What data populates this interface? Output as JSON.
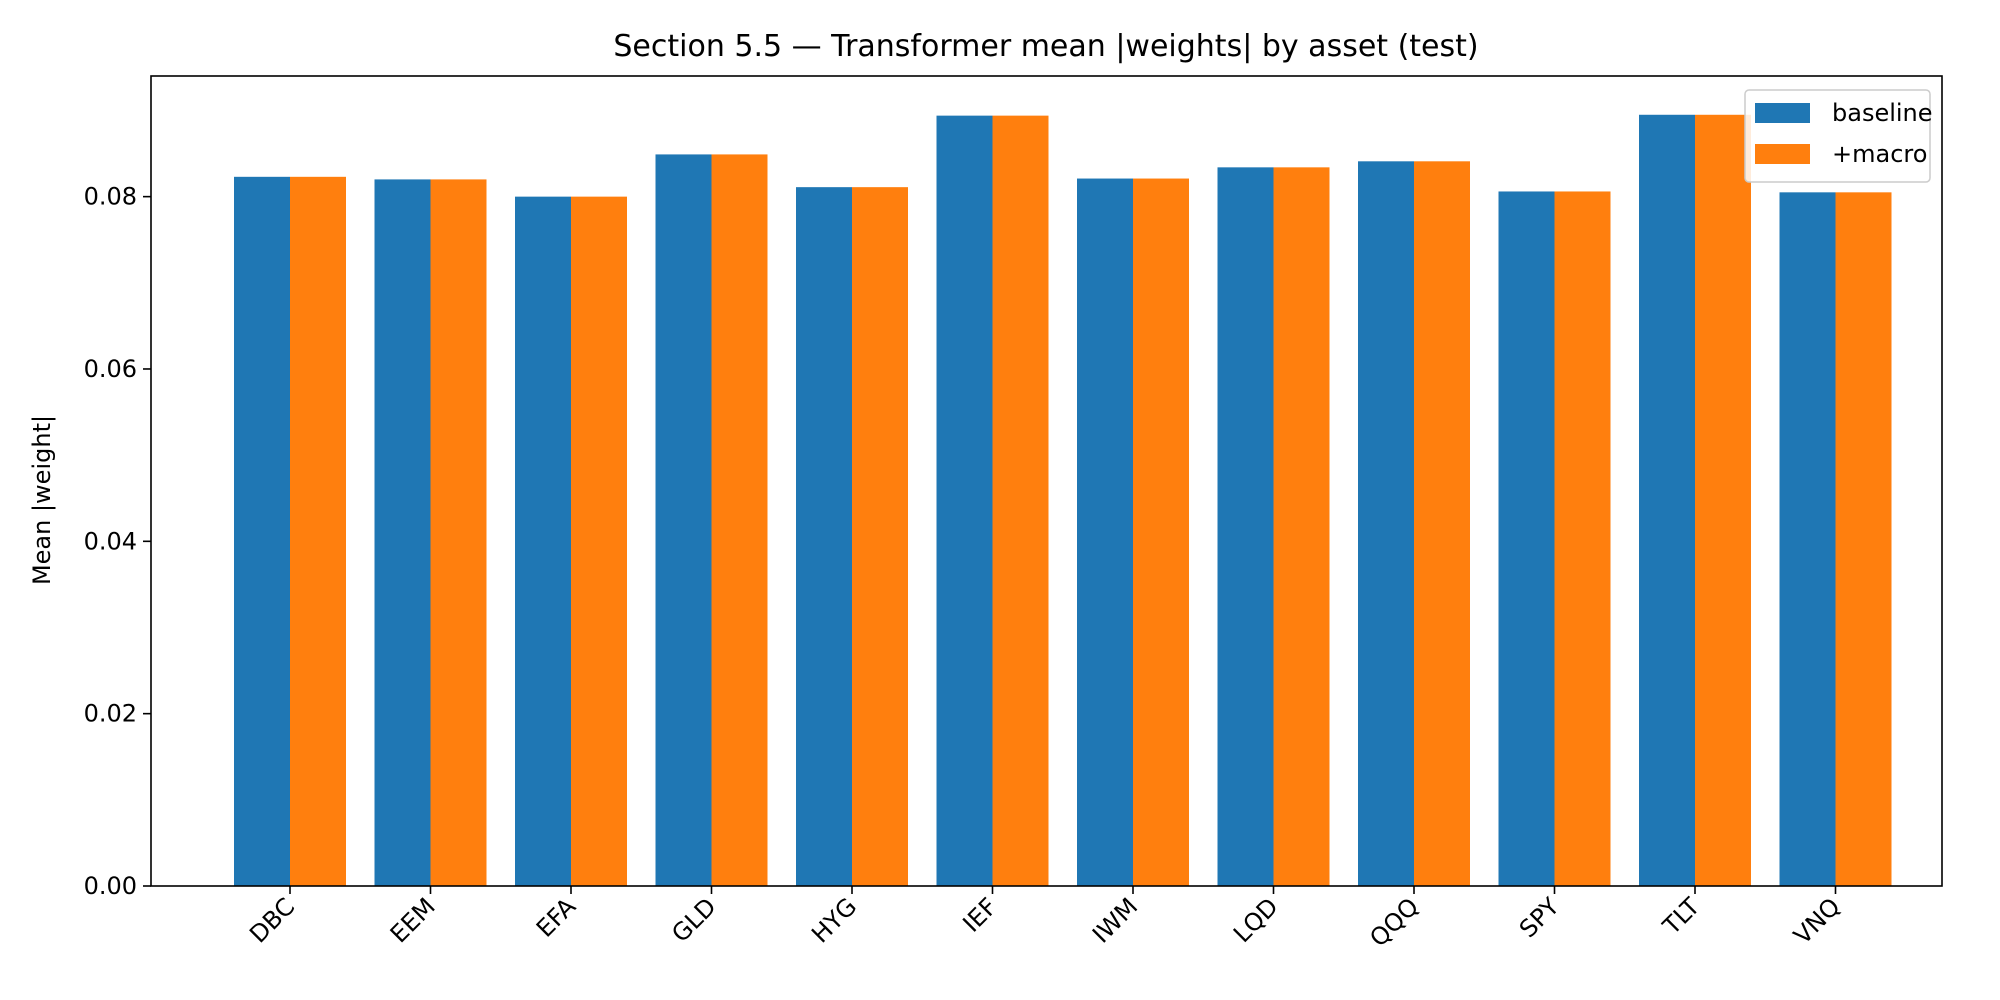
{
  "chart_data": {
    "type": "bar",
    "title": "Section 5.5 — Transformer mean |weights| by asset (test)",
    "xlabel": "",
    "ylabel": "Mean |weight|",
    "ylim": [
      0,
      0.094
    ],
    "yticks": [
      "0.00",
      "0.02",
      "0.04",
      "0.06",
      "0.08"
    ],
    "ytick_values": [
      0,
      0.02,
      0.04,
      0.06,
      0.08
    ],
    "categories": [
      "DBC",
      "EEM",
      "EFA",
      "GLD",
      "HYG",
      "IEF",
      "IWM",
      "LQD",
      "QQQ",
      "SPY",
      "TLT",
      "VNQ"
    ],
    "series": [
      {
        "name": "baseline",
        "color": "#1f77b4",
        "values": [
          0.0823,
          0.082,
          0.08,
          0.0849,
          0.0811,
          0.0894,
          0.0821,
          0.0834,
          0.0841,
          0.0806,
          0.0895,
          0.0805
        ]
      },
      {
        "name": "+macro",
        "color": "#ff7f0e",
        "values": [
          0.0823,
          0.082,
          0.08,
          0.0849,
          0.0811,
          0.0894,
          0.0821,
          0.0834,
          0.0841,
          0.0806,
          0.0895,
          0.0805
        ]
      }
    ],
    "grid": false,
    "legend_position": "top-right"
  }
}
